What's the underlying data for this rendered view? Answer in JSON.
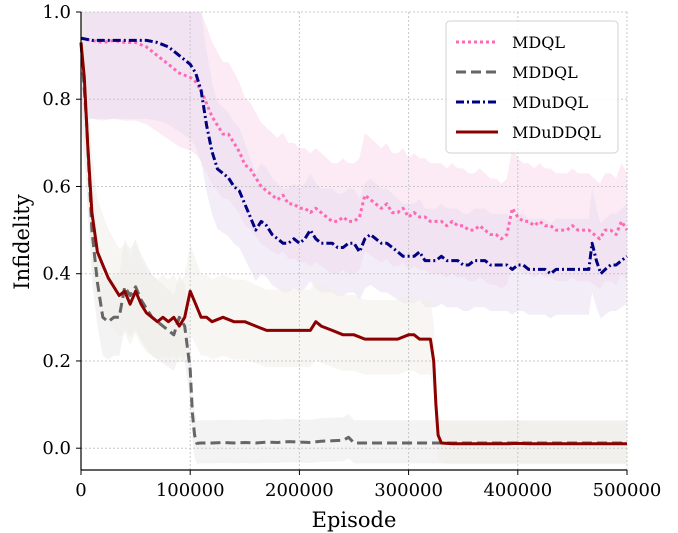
{
  "chart_data": {
    "type": "line",
    "xlabel": "Episode",
    "ylabel": "Infidelity",
    "xlim": [
      0,
      500000
    ],
    "ylim": [
      -0.05,
      1.0
    ],
    "xticks": [
      0,
      100000,
      200000,
      300000,
      400000,
      500000
    ],
    "xtick_labels": [
      "0",
      "100000",
      "200000",
      "300000",
      "400000",
      "500000"
    ],
    "yticks": [
      0.0,
      0.2,
      0.4,
      0.6,
      0.8,
      1.0
    ],
    "ytick_labels": [
      "0.0",
      "0.2",
      "0.4",
      "0.6",
      "0.8",
      "1.0"
    ],
    "grid": true,
    "legend_position": "top-right",
    "series": [
      {
        "name": "MDQL",
        "color": "#ff69b4",
        "style": "dotted",
        "band_color": "#f9d6ec",
        "x": [
          0,
          10000,
          20000,
          30000,
          40000,
          50000,
          60000,
          70000,
          80000,
          90000,
          100000,
          105000,
          110000,
          115000,
          120000,
          125000,
          130000,
          135000,
          140000,
          145000,
          150000,
          155000,
          160000,
          165000,
          170000,
          175000,
          180000,
          185000,
          190000,
          195000,
          200000,
          205000,
          210000,
          215000,
          220000,
          225000,
          230000,
          235000,
          240000,
          245000,
          250000,
          255000,
          260000,
          265000,
          270000,
          275000,
          280000,
          285000,
          290000,
          295000,
          300000,
          305000,
          310000,
          315000,
          320000,
          325000,
          330000,
          335000,
          340000,
          345000,
          350000,
          355000,
          360000,
          365000,
          370000,
          375000,
          380000,
          385000,
          390000,
          395000,
          400000,
          405000,
          410000,
          415000,
          420000,
          425000,
          430000,
          435000,
          440000,
          445000,
          450000,
          455000,
          460000,
          465000,
          470000,
          475000,
          480000,
          485000,
          490000,
          495000,
          500000
        ],
        "values": [
          0.94,
          0.935,
          0.93,
          0.935,
          0.93,
          0.93,
          0.92,
          0.9,
          0.88,
          0.86,
          0.85,
          0.84,
          0.82,
          0.79,
          0.76,
          0.74,
          0.72,
          0.72,
          0.7,
          0.68,
          0.65,
          0.64,
          0.62,
          0.6,
          0.59,
          0.58,
          0.57,
          0.58,
          0.56,
          0.56,
          0.55,
          0.55,
          0.54,
          0.55,
          0.54,
          0.53,
          0.52,
          0.52,
          0.53,
          0.52,
          0.52,
          0.53,
          0.58,
          0.57,
          0.56,
          0.55,
          0.56,
          0.54,
          0.54,
          0.55,
          0.53,
          0.54,
          0.53,
          0.53,
          0.52,
          0.52,
          0.52,
          0.51,
          0.52,
          0.51,
          0.51,
          0.5,
          0.5,
          0.51,
          0.5,
          0.49,
          0.49,
          0.48,
          0.49,
          0.55,
          0.53,
          0.52,
          0.52,
          0.51,
          0.52,
          0.51,
          0.51,
          0.5,
          0.5,
          0.5,
          0.51,
          0.5,
          0.5,
          0.5,
          0.49,
          0.48,
          0.5,
          0.5,
          0.49,
          0.52,
          0.5
        ]
      },
      {
        "name": "MDDQL",
        "color": "#666666",
        "style": "dashed",
        "band_color": "#e8e8e8",
        "x": [
          0,
          5000,
          10000,
          15000,
          20000,
          25000,
          30000,
          35000,
          40000,
          45000,
          50000,
          55000,
          60000,
          65000,
          70000,
          75000,
          80000,
          85000,
          90000,
          95000,
          100000,
          102000,
          104000,
          106000,
          110000,
          120000,
          130000,
          140000,
          150000,
          160000,
          170000,
          180000,
          190000,
          200000,
          210000,
          220000,
          230000,
          240000,
          245000,
          250000,
          255000,
          260000,
          270000,
          280000,
          290000,
          300000,
          310000,
          320000,
          330000,
          340000,
          350000,
          360000,
          370000,
          380000,
          390000,
          400000,
          410000,
          420000,
          430000,
          440000,
          450000,
          460000,
          470000,
          480000,
          490000,
          500000
        ],
        "values": [
          0.93,
          0.75,
          0.5,
          0.38,
          0.3,
          0.29,
          0.3,
          0.3,
          0.37,
          0.35,
          0.37,
          0.34,
          0.32,
          0.3,
          0.29,
          0.28,
          0.27,
          0.26,
          0.3,
          0.28,
          0.18,
          0.08,
          0.03,
          0.011,
          0.012,
          0.012,
          0.013,
          0.012,
          0.013,
          0.012,
          0.014,
          0.013,
          0.015,
          0.014,
          0.013,
          0.016,
          0.017,
          0.018,
          0.025,
          0.012,
          0.012,
          0.012,
          0.012,
          0.012,
          0.012,
          0.012,
          0.012,
          0.012,
          0.012,
          0.012,
          0.012,
          0.012,
          0.012,
          0.012,
          0.012,
          0.012,
          0.012,
          0.012,
          0.012,
          0.012,
          0.012,
          0.012,
          0.012,
          0.012,
          0.012,
          0.012
        ]
      },
      {
        "name": "MDuDQL",
        "color": "#000080",
        "style": "dashdot",
        "band_color": "#e6dcf0",
        "x": [
          0,
          10000,
          20000,
          30000,
          40000,
          50000,
          60000,
          70000,
          80000,
          90000,
          100000,
          105000,
          110000,
          115000,
          120000,
          125000,
          130000,
          135000,
          140000,
          145000,
          150000,
          155000,
          160000,
          165000,
          170000,
          175000,
          180000,
          185000,
          190000,
          195000,
          200000,
          205000,
          210000,
          215000,
          220000,
          225000,
          230000,
          235000,
          240000,
          245000,
          250000,
          255000,
          260000,
          265000,
          270000,
          275000,
          280000,
          285000,
          290000,
          295000,
          300000,
          305000,
          310000,
          315000,
          320000,
          325000,
          330000,
          335000,
          340000,
          345000,
          350000,
          355000,
          360000,
          365000,
          370000,
          375000,
          380000,
          385000,
          390000,
          395000,
          400000,
          405000,
          410000,
          415000,
          420000,
          425000,
          430000,
          435000,
          440000,
          445000,
          450000,
          455000,
          460000,
          465000,
          468000,
          472000,
          476000,
          480000,
          485000,
          490000,
          495000,
          500000
        ],
        "values": [
          0.94,
          0.935,
          0.935,
          0.935,
          0.935,
          0.935,
          0.935,
          0.93,
          0.92,
          0.9,
          0.88,
          0.86,
          0.82,
          0.74,
          0.68,
          0.64,
          0.63,
          0.62,
          0.6,
          0.59,
          0.56,
          0.53,
          0.5,
          0.52,
          0.51,
          0.49,
          0.48,
          0.47,
          0.47,
          0.48,
          0.47,
          0.48,
          0.5,
          0.48,
          0.47,
          0.47,
          0.47,
          0.46,
          0.46,
          0.47,
          0.47,
          0.45,
          0.48,
          0.49,
          0.48,
          0.47,
          0.47,
          0.46,
          0.45,
          0.44,
          0.44,
          0.44,
          0.45,
          0.43,
          0.43,
          0.43,
          0.44,
          0.43,
          0.43,
          0.43,
          0.42,
          0.42,
          0.43,
          0.43,
          0.43,
          0.42,
          0.42,
          0.42,
          0.42,
          0.41,
          0.42,
          0.42,
          0.41,
          0.41,
          0.41,
          0.41,
          0.4,
          0.41,
          0.41,
          0.41,
          0.41,
          0.41,
          0.41,
          0.41,
          0.47,
          0.43,
          0.4,
          0.41,
          0.42,
          0.42,
          0.43,
          0.44
        ]
      },
      {
        "name": "MDuDDQL",
        "color": "#8b0000",
        "style": "solid",
        "band_color": "#f1eee6",
        "x": [
          0,
          3000,
          6000,
          10000,
          15000,
          20000,
          25000,
          30000,
          35000,
          40000,
          45000,
          50000,
          55000,
          60000,
          65000,
          70000,
          75000,
          80000,
          85000,
          90000,
          95000,
          100000,
          105000,
          110000,
          115000,
          120000,
          130000,
          140000,
          150000,
          160000,
          170000,
          180000,
          190000,
          200000,
          210000,
          215000,
          220000,
          230000,
          240000,
          250000,
          260000,
          270000,
          280000,
          290000,
          300000,
          305000,
          310000,
          315000,
          320000,
          323000,
          325000,
          327000,
          330000,
          340000,
          350000,
          360000,
          370000,
          380000,
          390000,
          400000,
          410000,
          420000,
          430000,
          440000,
          450000,
          460000,
          470000,
          480000,
          490000,
          500000
        ],
        "values": [
          0.93,
          0.85,
          0.7,
          0.54,
          0.45,
          0.42,
          0.39,
          0.37,
          0.35,
          0.36,
          0.33,
          0.36,
          0.33,
          0.31,
          0.3,
          0.29,
          0.3,
          0.29,
          0.3,
          0.28,
          0.3,
          0.36,
          0.33,
          0.3,
          0.3,
          0.29,
          0.3,
          0.29,
          0.29,
          0.28,
          0.27,
          0.27,
          0.27,
          0.27,
          0.27,
          0.29,
          0.28,
          0.27,
          0.26,
          0.26,
          0.25,
          0.25,
          0.25,
          0.25,
          0.26,
          0.26,
          0.25,
          0.25,
          0.25,
          0.2,
          0.1,
          0.03,
          0.012,
          0.01,
          0.01,
          0.01,
          0.01,
          0.01,
          0.01,
          0.011,
          0.01,
          0.01,
          0.01,
          0.01,
          0.01,
          0.01,
          0.01,
          0.01,
          0.01,
          0.01
        ]
      }
    ]
  }
}
